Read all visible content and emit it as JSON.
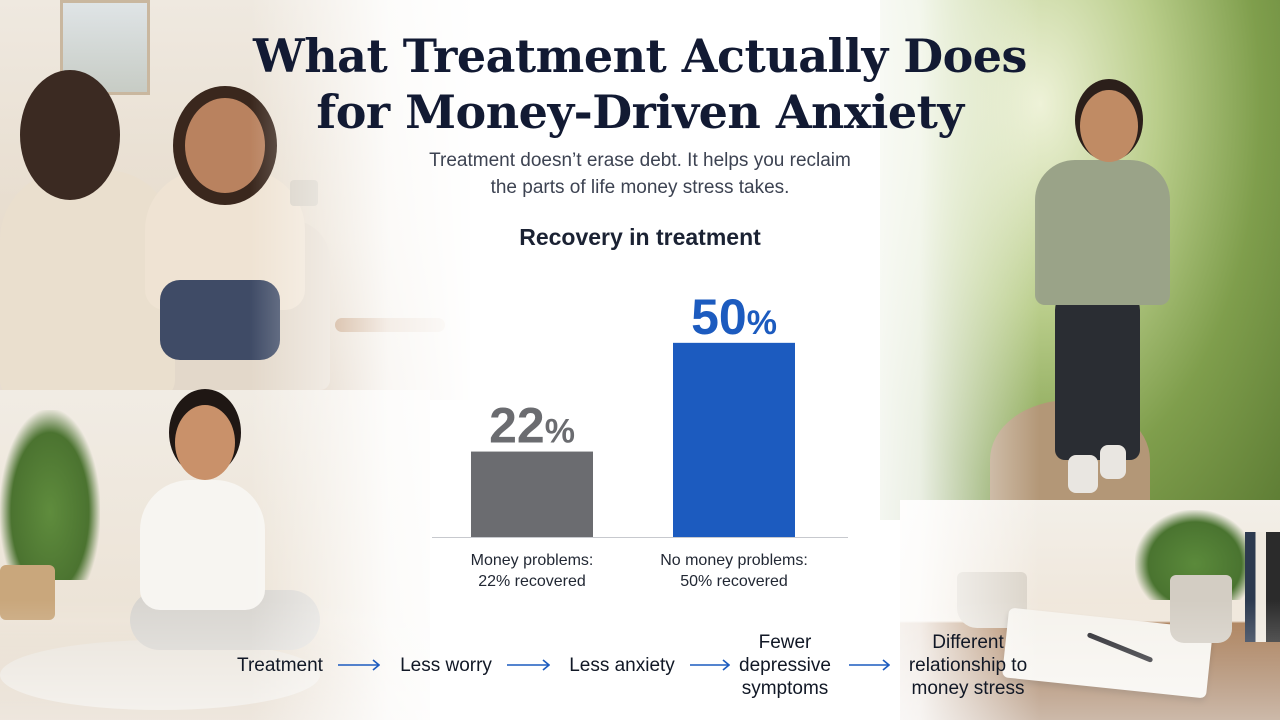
{
  "title_line1": "What Treatment Actually Does",
  "title_line2": "for Money-Driven Anxiety",
  "subtitle_line1": "Treatment doesn’t erase debt. It helps you reclaim",
  "subtitle_line2": "the parts of life money stress takes.",
  "chart_data": {
    "type": "bar",
    "title": "Recovery in treatment",
    "categories": [
      "Money problems: 22% recovered",
      "No money problems: 50% recovered"
    ],
    "category_lines": [
      [
        "Money problems:",
        "22% recovered"
      ],
      [
        "No money problems:",
        "50% recovered"
      ]
    ],
    "values": [
      22,
      50
    ],
    "value_labels": [
      "22",
      "50"
    ],
    "unit": "%",
    "colors": [
      "#6b6c70",
      "#1c5bbf"
    ],
    "ylim": [
      0,
      60
    ],
    "grid": false,
    "xlabel": "",
    "ylabel": ""
  },
  "flow": {
    "items": [
      [
        "Treatment"
      ],
      [
        "Less worry"
      ],
      [
        "Less anxiety"
      ],
      [
        "Fewer",
        "depressive",
        "symptoms"
      ],
      [
        "Different",
        "relationship to",
        "money stress"
      ]
    ],
    "arrow_color": "#1c5bbf"
  }
}
